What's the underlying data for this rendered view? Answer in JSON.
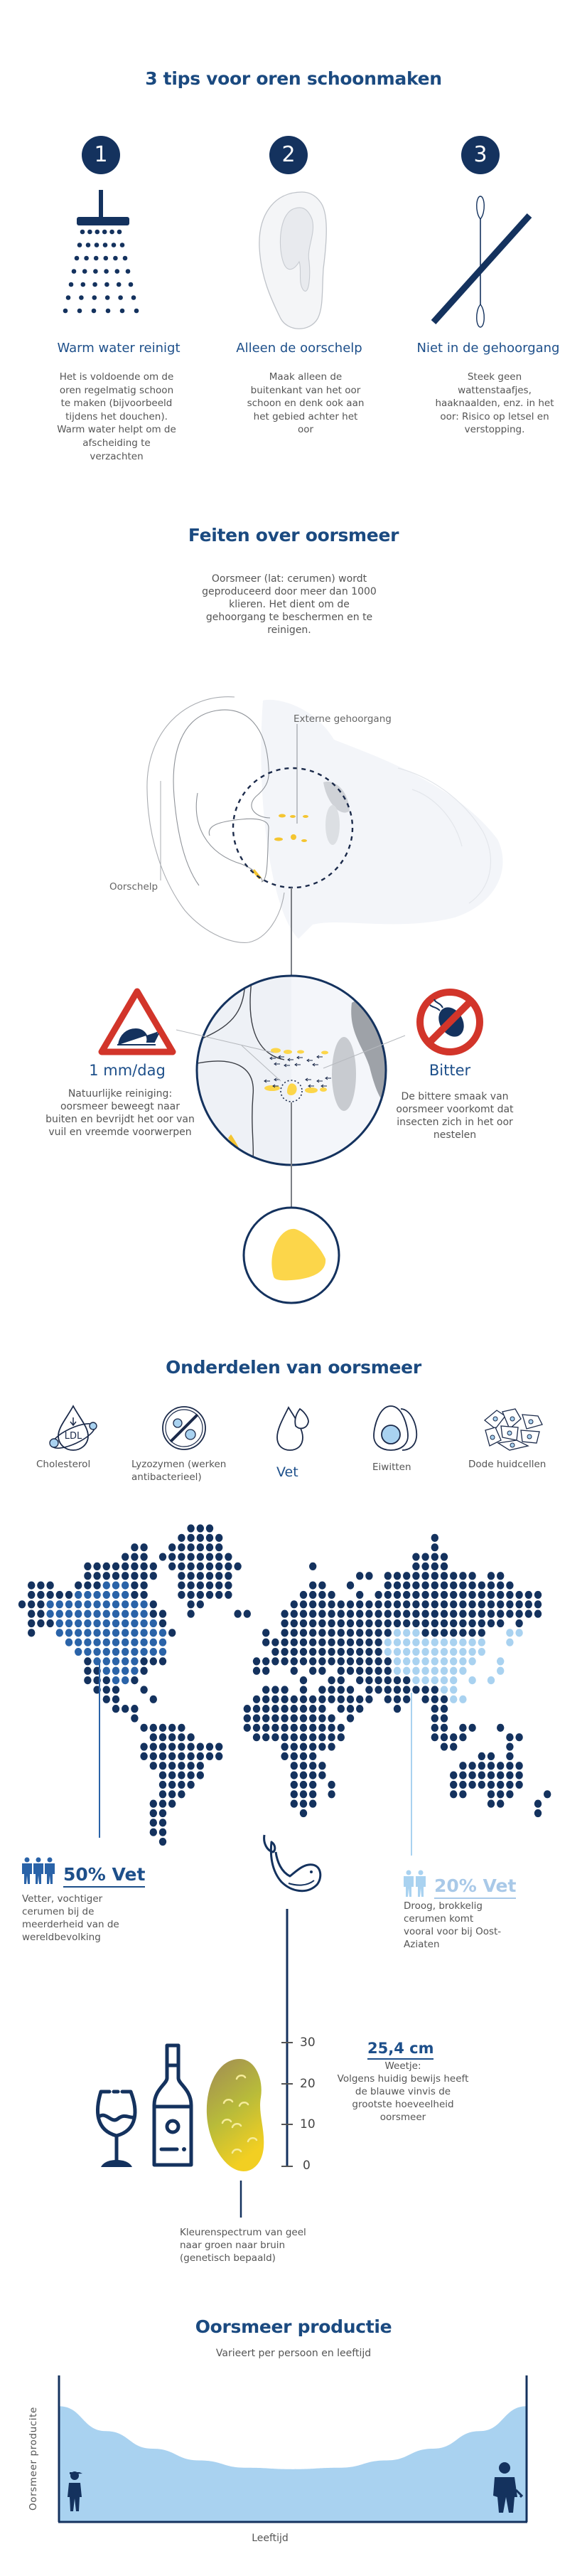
{
  "colors": {
    "navy": "#14325e",
    "title_blue": "#1b4a80",
    "medium_blue": "#2a63a8",
    "light_blue": "#a9d2f0",
    "warning_red": "#d2352a",
    "wax_yellow": "#fcd64a"
  },
  "tips": {
    "title": "3 tips voor oren schoonmaken",
    "items": [
      {
        "number": "1",
        "icon": "shower-icon",
        "heading": "Warm water reinigt",
        "text": "Het is voldoende om de\noren regelmatig schoon\nte maken (bijvoorbeeld\ntijdens het douchen).\nWarm water helpt om de\nafscheiding te\nverzachten"
      },
      {
        "number": "2",
        "icon": "ear-icon",
        "heading": "Alleen de oorschelp",
        "text": "Maak alleen de\nbuitenkant van het oor\nschoon en denk ook aan\nhet gebied achter het\noor"
      },
      {
        "number": "3",
        "icon": "no-cotton-swab-icon",
        "heading": "Niet in de gehoorgang",
        "text": "Steek geen\nwattenstaafjes,\nhaaknaalden, enz. in het\noor: Risico op letsel en\nverstopping."
      }
    ]
  },
  "facts": {
    "title": "Feiten over oorsmeer",
    "intro": "Oorsmeer (lat: cerumen) wordt\ngeproduceerd door meer dan 1000\nklieren. Het dient om de\ngehoorgang te beschermen en te\nreinigen.",
    "label_canal": "Externe gehoorgang",
    "label_auricle": "Oorschelp",
    "left": {
      "icon": "snail-warning-icon",
      "heading": "1 mm/dag",
      "text": "Natuurlijke reiniging:\noorsmeer beweegt naar\nbuiten en bevrijdt het oor van\nvuil en vreemde voorwerpen"
    },
    "right": {
      "icon": "no-insect-icon",
      "heading": "Bitter",
      "text": "De bittere smaak van\noorsmeer voorkomt dat\ninsecten zich in het oor\nnestelen"
    }
  },
  "components": {
    "title": "Onderdelen van oorsmeer",
    "items": [
      {
        "icon": "ldl-cholesterol-icon",
        "label": "Cholesterol"
      },
      {
        "icon": "no-bacteria-icon",
        "label": "Lyzozymen (werken\nantibacterieel)"
      },
      {
        "icon": "fat-drop-icon",
        "label": "Vet",
        "highlight": true
      },
      {
        "icon": "egg-icon",
        "label": "Eiwitten"
      },
      {
        "icon": "skin-cells-icon",
        "label": "Dode huidcellen"
      }
    ]
  },
  "world": {
    "wet": {
      "value": "50% Vet",
      "text": "Vetter, vochtiger\ncerumen bij de\nmeerderheid van de\nwereldbevolking",
      "color": "#2a63a8"
    },
    "dry": {
      "value": "20% Vet",
      "text": "Droog, brokkelig\ncerumen komt\nvooral voor bij Oost-\nAziaten",
      "color": "#a9d2f0"
    }
  },
  "ruler": {
    "ticks": [
      "30",
      "20",
      "10",
      "0"
    ]
  },
  "whale_fact": {
    "value": "25,4 cm",
    "text": "Weetje:\nVolgens huidig bewijs heeft\nde blauwe vinvis de\ngrootste hoeveelheid\noorsmeer",
    "icon": "whale-icon"
  },
  "color_fact": {
    "text": "Kleurenspectrum van geel\nnaar groen naar bruin\n(genetisch bepaald)",
    "icons": [
      "wine-glass-icon",
      "bottle-icon",
      "earwax-blob-icon"
    ]
  },
  "production": {
    "title": "Oorsmeer productie",
    "subtitle": "Varieert per persoon en leeftijd",
    "chart_data": {
      "type": "area",
      "xlabel": "Leeftijd",
      "ylabel": "Oorsmeer producite",
      "x_relative": [
        0,
        0.1,
        0.2,
        0.3,
        0.4,
        0.5,
        0.6,
        0.7,
        0.8,
        0.9,
        1
      ],
      "y_relative": [
        0.79,
        0.62,
        0.5,
        0.42,
        0.37,
        0.36,
        0.37,
        0.42,
        0.5,
        0.62,
        0.79
      ],
      "fill": "#a9d2f0",
      "grid": false,
      "icons": [
        "child-icon",
        "elderly-man-icon"
      ]
    }
  }
}
